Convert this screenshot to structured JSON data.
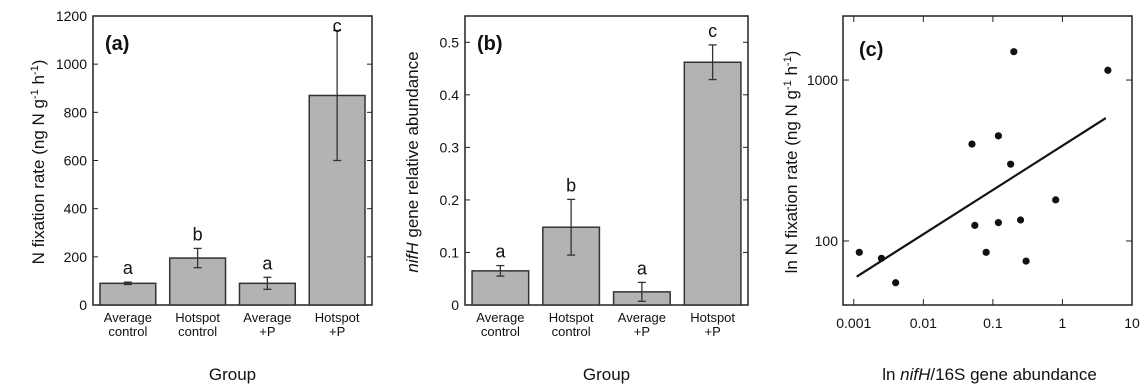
{
  "chart_data": [
    {
      "type": "bar",
      "panel_label": "(a)",
      "ylabel": "N fixation rate (ng N g-1 h-1)",
      "xlabel": "Group",
      "categories": [
        "Average control",
        "Hotspot control",
        "Average +P",
        "Hotspot +P"
      ],
      "category_lines": [
        [
          "Average",
          "control"
        ],
        [
          "Hotspot",
          "control"
        ],
        [
          "Average",
          "+P"
        ],
        [
          "Hotspot",
          "+P"
        ]
      ],
      "values": [
        90,
        195,
        90,
        870
      ],
      "errors": [
        5,
        40,
        25,
        270
      ],
      "significance": [
        "a",
        "b",
        "a",
        "c"
      ],
      "ylim": [
        0,
        1200
      ],
      "yticks": [
        "0",
        "200",
        "400",
        "600",
        "800",
        "1000",
        "1200"
      ]
    },
    {
      "type": "bar",
      "panel_label": "(b)",
      "ylabel": "nifH gene relative abundance",
      "xlabel": "Group",
      "categories": [
        "Average control",
        "Hotspot control",
        "Average +P",
        "Hotspot +P"
      ],
      "category_lines": [
        [
          "Average",
          "control"
        ],
        [
          "Hotspot",
          "control"
        ],
        [
          "Average",
          "+P"
        ],
        [
          "Hotspot",
          "+P"
        ]
      ],
      "values": [
        0.065,
        0.148,
        0.025,
        0.462
      ],
      "errors": [
        0.01,
        0.053,
        0.018,
        0.033
      ],
      "significance": [
        "a",
        "b",
        "a",
        "c"
      ],
      "ylim": [
        0,
        0.55
      ],
      "yticks": [
        "0",
        "0.1",
        "0.2",
        "0.3",
        "0.4",
        "0.5"
      ]
    },
    {
      "type": "scatter",
      "panel_label": "(c)",
      "ylabel": "ln N fixation rate (ng N g-1 h-1)",
      "xlabel": "ln nifH/16S gene abundance",
      "xscale": "log",
      "yscale": "log",
      "xlim": [
        0.0007,
        10
      ],
      "ylim": [
        40,
        2500
      ],
      "xticks": [
        "0.001",
        "0.01",
        "0.1",
        "1",
        "10"
      ],
      "yticks": [
        "100",
        "1000"
      ],
      "points": [
        {
          "x": 0.0012,
          "y": 85
        },
        {
          "x": 0.0025,
          "y": 78
        },
        {
          "x": 0.004,
          "y": 55
        },
        {
          "x": 0.05,
          "y": 400
        },
        {
          "x": 0.055,
          "y": 125
        },
        {
          "x": 0.08,
          "y": 85
        },
        {
          "x": 0.12,
          "y": 450
        },
        {
          "x": 0.12,
          "y": 130
        },
        {
          "x": 0.18,
          "y": 300
        },
        {
          "x": 0.2,
          "y": 1500
        },
        {
          "x": 0.25,
          "y": 135
        },
        {
          "x": 0.3,
          "y": 75
        },
        {
          "x": 0.8,
          "y": 180
        },
        {
          "x": 4.5,
          "y": 1150
        }
      ],
      "fit_line": {
        "x": [
          0.0011,
          4.2
        ],
        "y": [
          60,
          580
        ]
      }
    }
  ]
}
